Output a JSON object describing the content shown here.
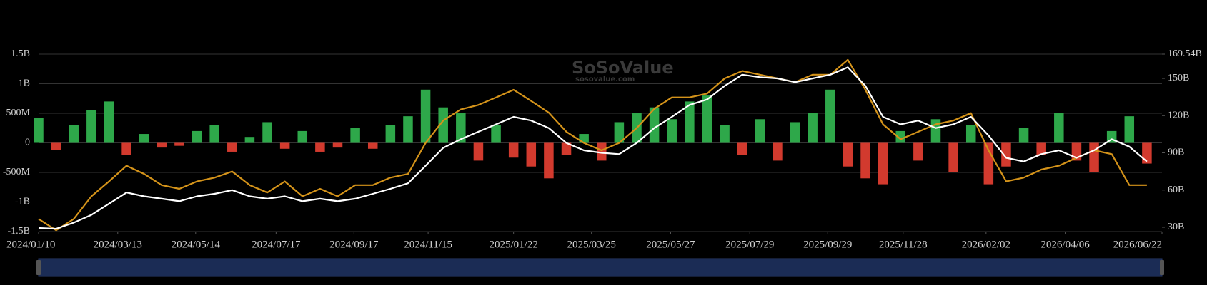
{
  "chart_data": {
    "type": "bar-line",
    "watermark": "SoSoValue",
    "watermark_sub": "sosovalue.com",
    "x": [
      "2024/01/10",
      "2024/01/24",
      "2024/02/07",
      "2024/02/21",
      "2024/03/06",
      "2024/03/20",
      "2024/04/03",
      "2024/04/17",
      "2024/05/01",
      "2024/05/15",
      "2024/05/29",
      "2024/06/12",
      "2024/06/26",
      "2024/07/10",
      "2024/07/24",
      "2024/08/07",
      "2024/08/21",
      "2024/09/04",
      "2024/09/18",
      "2024/10/02",
      "2024/10/16",
      "2024/10/30",
      "2024/11/13",
      "2024/11/27",
      "2024/12/11",
      "2024/12/25",
      "2025/01/08",
      "2025/01/22",
      "2025/02/05",
      "2025/02/19",
      "2025/03/05",
      "2025/03/19",
      "2025/04/02",
      "2025/04/16",
      "2025/04/30",
      "2025/05/14",
      "2025/05/28",
      "2025/06/11",
      "2025/06/25",
      "2025/07/09",
      "2025/07/23",
      "2025/08/06",
      "2025/08/20",
      "2025/09/03",
      "2025/09/17",
      "2025/10/01",
      "2025/10/15",
      "2025/10/29",
      "2025/11/12",
      "2025/11/26",
      "2025/12/10",
      "2025/12/24",
      "2026/01/07",
      "2026/01/21",
      "2026/02/04",
      "2026/02/18",
      "2026/03/04",
      "2026/03/18",
      "2026/04/01",
      "2026/04/15",
      "2026/04/29",
      "2026/05/13",
      "2026/05/27",
      "2026/06/10"
    ],
    "xlim": [
      "2024/01/10",
      "2026/06/22"
    ],
    "xticks": [
      "2024/01/10",
      "2024/03/13",
      "2024/05/14",
      "2024/07/17",
      "2024/09/17",
      "2024/11/15",
      "2025/01/22",
      "2025/03/25",
      "2025/05/27",
      "2025/07/29",
      "2025/09/29",
      "2025/11/28",
      "2026/02/02",
      "2026/04/06",
      "2026/06/22"
    ],
    "ylim": [
      -1500,
      1500
    ],
    "yticks": [
      {
        "value": 1500,
        "label": "1.5B"
      },
      {
        "value": 1000,
        "label": "1B"
      },
      {
        "value": 500,
        "label": "500M"
      },
      0,
      {
        "value": -500,
        "label": "-500M"
      },
      {
        "value": -1000,
        "label": "-1B"
      },
      {
        "value": -1500,
        "label": "-1.5B"
      }
    ],
    "y2lim": [
      26.55,
      169.54
    ],
    "y2ticks": [
      {
        "value": 169.54,
        "label": "169.54B"
      },
      {
        "value": 150,
        "label": "150B"
      },
      {
        "value": 120,
        "label": "120B"
      },
      {
        "value": 90,
        "label": "90B"
      },
      {
        "value": 60,
        "label": "60B"
      },
      {
        "value": 30,
        "label": "30B"
      }
    ],
    "grid": true,
    "series": [
      {
        "type": "bar",
        "colors": {
          "positive": "#2ea84a",
          "negative": "#d23a2e"
        },
        "values": [
          420,
          -120,
          300,
          550,
          700,
          -200,
          150,
          -80,
          -50,
          200,
          300,
          -150,
          100,
          350,
          -100,
          200,
          -150,
          -80,
          250,
          -100,
          300,
          450,
          900,
          600,
          500,
          -300,
          300,
          -250,
          -400,
          -600,
          -200,
          150,
          -300,
          350,
          500,
          600,
          400,
          700,
          800,
          300,
          -200,
          400,
          -300,
          350,
          500,
          900,
          -400,
          -600,
          -700,
          200,
          -300,
          400,
          -500,
          300,
          -700,
          -400,
          250,
          -200,
          500,
          -300,
          -500,
          200,
          450,
          -350
        ]
      },
      {
        "type": "line",
        "axis": "y2",
        "color": "#d4931a",
        "values": [
          36.7,
          27.6,
          36.7,
          55,
          67,
          79.6,
          73,
          64,
          61,
          67,
          70,
          75,
          64,
          58,
          67,
          55,
          61,
          55,
          64,
          64,
          70,
          73,
          98,
          116,
          125,
          128.6,
          134.7,
          140.8,
          131.8,
          122.4,
          107,
          98,
          92,
          98,
          110,
          125.5,
          134.7,
          134.7,
          137.8,
          150,
          156,
          153,
          150,
          147,
          153,
          153,
          165,
          140.8,
          113,
          101,
          107,
          113,
          116,
          122,
          92,
          67,
          70,
          76.5,
          79.6,
          86,
          92,
          89,
          64,
          64
        ]
      },
      {
        "type": "line",
        "axis": "y2",
        "color": "#ffffff",
        "values": [
          29.4,
          28.8,
          33.7,
          40,
          49,
          58,
          55,
          53,
          51,
          55,
          57,
          60,
          55,
          53,
          55,
          51,
          53,
          51,
          53,
          57,
          61,
          65.5,
          79.6,
          94,
          101,
          107,
          113,
          119,
          116,
          110,
          98,
          92,
          90,
          89,
          98,
          110,
          119,
          128.6,
          133,
          144,
          153,
          151,
          150,
          147,
          150,
          153,
          159,
          144,
          119,
          113,
          116,
          110,
          113,
          119,
          104,
          86,
          83,
          89,
          92,
          86,
          92,
          101,
          95,
          83
        ]
      }
    ]
  }
}
